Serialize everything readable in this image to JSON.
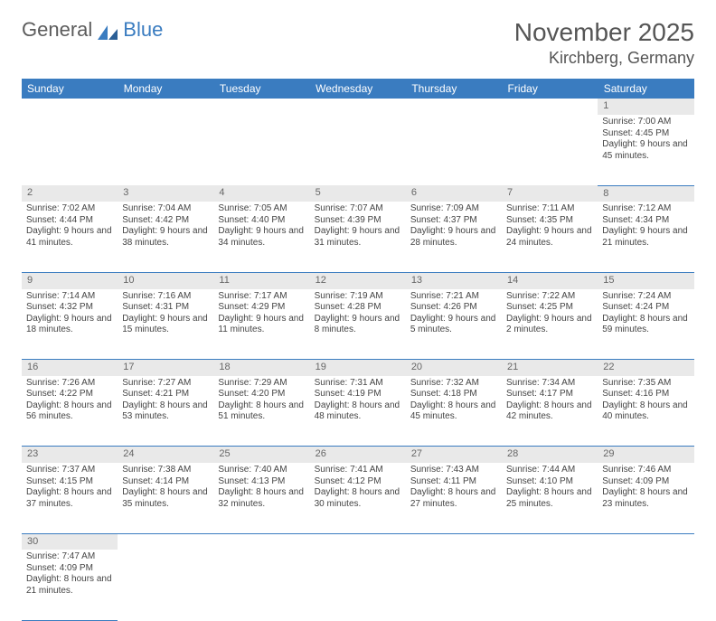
{
  "logo": {
    "text_a": "General",
    "text_b": "Blue"
  },
  "title": "November 2025",
  "location": "Kirchberg, Germany",
  "colors": {
    "header_bg": "#3a7cc0",
    "header_fg": "#ffffff",
    "daynum_bg": "#e9e9e9",
    "daynum_fg": "#666666",
    "body_fg": "#444444",
    "border": "#3a7cc0"
  },
  "weekdays": [
    "Sunday",
    "Monday",
    "Tuesday",
    "Wednesday",
    "Thursday",
    "Friday",
    "Saturday"
  ],
  "weeks": [
    [
      null,
      null,
      null,
      null,
      null,
      null,
      {
        "n": "1",
        "sunrise": "7:00 AM",
        "sunset": "4:45 PM",
        "daylight": "9 hours and 45 minutes."
      }
    ],
    [
      {
        "n": "2",
        "sunrise": "7:02 AM",
        "sunset": "4:44 PM",
        "daylight": "9 hours and 41 minutes."
      },
      {
        "n": "3",
        "sunrise": "7:04 AM",
        "sunset": "4:42 PM",
        "daylight": "9 hours and 38 minutes."
      },
      {
        "n": "4",
        "sunrise": "7:05 AM",
        "sunset": "4:40 PM",
        "daylight": "9 hours and 34 minutes."
      },
      {
        "n": "5",
        "sunrise": "7:07 AM",
        "sunset": "4:39 PM",
        "daylight": "9 hours and 31 minutes."
      },
      {
        "n": "6",
        "sunrise": "7:09 AM",
        "sunset": "4:37 PM",
        "daylight": "9 hours and 28 minutes."
      },
      {
        "n": "7",
        "sunrise": "7:11 AM",
        "sunset": "4:35 PM",
        "daylight": "9 hours and 24 minutes."
      },
      {
        "n": "8",
        "sunrise": "7:12 AM",
        "sunset": "4:34 PM",
        "daylight": "9 hours and 21 minutes."
      }
    ],
    [
      {
        "n": "9",
        "sunrise": "7:14 AM",
        "sunset": "4:32 PM",
        "daylight": "9 hours and 18 minutes."
      },
      {
        "n": "10",
        "sunrise": "7:16 AM",
        "sunset": "4:31 PM",
        "daylight": "9 hours and 15 minutes."
      },
      {
        "n": "11",
        "sunrise": "7:17 AM",
        "sunset": "4:29 PM",
        "daylight": "9 hours and 11 minutes."
      },
      {
        "n": "12",
        "sunrise": "7:19 AM",
        "sunset": "4:28 PM",
        "daylight": "9 hours and 8 minutes."
      },
      {
        "n": "13",
        "sunrise": "7:21 AM",
        "sunset": "4:26 PM",
        "daylight": "9 hours and 5 minutes."
      },
      {
        "n": "14",
        "sunrise": "7:22 AM",
        "sunset": "4:25 PM",
        "daylight": "9 hours and 2 minutes."
      },
      {
        "n": "15",
        "sunrise": "7:24 AM",
        "sunset": "4:24 PM",
        "daylight": "8 hours and 59 minutes."
      }
    ],
    [
      {
        "n": "16",
        "sunrise": "7:26 AM",
        "sunset": "4:22 PM",
        "daylight": "8 hours and 56 minutes."
      },
      {
        "n": "17",
        "sunrise": "7:27 AM",
        "sunset": "4:21 PM",
        "daylight": "8 hours and 53 minutes."
      },
      {
        "n": "18",
        "sunrise": "7:29 AM",
        "sunset": "4:20 PM",
        "daylight": "8 hours and 51 minutes."
      },
      {
        "n": "19",
        "sunrise": "7:31 AM",
        "sunset": "4:19 PM",
        "daylight": "8 hours and 48 minutes."
      },
      {
        "n": "20",
        "sunrise": "7:32 AM",
        "sunset": "4:18 PM",
        "daylight": "8 hours and 45 minutes."
      },
      {
        "n": "21",
        "sunrise": "7:34 AM",
        "sunset": "4:17 PM",
        "daylight": "8 hours and 42 minutes."
      },
      {
        "n": "22",
        "sunrise": "7:35 AM",
        "sunset": "4:16 PM",
        "daylight": "8 hours and 40 minutes."
      }
    ],
    [
      {
        "n": "23",
        "sunrise": "7:37 AM",
        "sunset": "4:15 PM",
        "daylight": "8 hours and 37 minutes."
      },
      {
        "n": "24",
        "sunrise": "7:38 AM",
        "sunset": "4:14 PM",
        "daylight": "8 hours and 35 minutes."
      },
      {
        "n": "25",
        "sunrise": "7:40 AM",
        "sunset": "4:13 PM",
        "daylight": "8 hours and 32 minutes."
      },
      {
        "n": "26",
        "sunrise": "7:41 AM",
        "sunset": "4:12 PM",
        "daylight": "8 hours and 30 minutes."
      },
      {
        "n": "27",
        "sunrise": "7:43 AM",
        "sunset": "4:11 PM",
        "daylight": "8 hours and 27 minutes."
      },
      {
        "n": "28",
        "sunrise": "7:44 AM",
        "sunset": "4:10 PM",
        "daylight": "8 hours and 25 minutes."
      },
      {
        "n": "29",
        "sunrise": "7:46 AM",
        "sunset": "4:09 PM",
        "daylight": "8 hours and 23 minutes."
      }
    ],
    [
      {
        "n": "30",
        "sunrise": "7:47 AM",
        "sunset": "4:09 PM",
        "daylight": "8 hours and 21 minutes."
      },
      null,
      null,
      null,
      null,
      null,
      null
    ]
  ],
  "labels": {
    "sunrise": "Sunrise:",
    "sunset": "Sunset:",
    "daylight": "Daylight:"
  }
}
